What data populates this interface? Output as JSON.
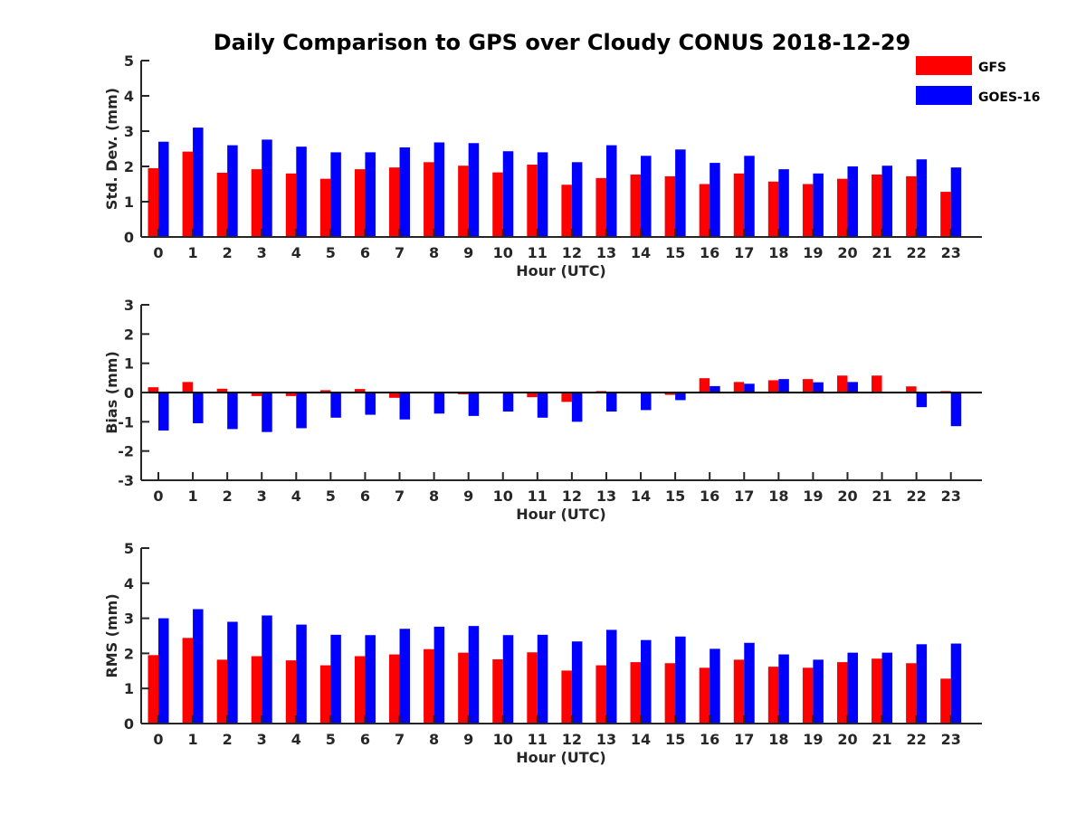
{
  "chart_data": {
    "title": "Daily Comparison to GPS over Cloudy CONUS 2018-12-29",
    "type": "bar",
    "legend": {
      "placement": "top-right",
      "entries": [
        {
          "name": "GFS",
          "color": "#ff0000"
        },
        {
          "name": "GOES-16",
          "color": "#0000ff"
        }
      ]
    },
    "colors": {
      "GFS": "#ff0000",
      "GOES-16": "#0000ff",
      "axis": "#262626"
    },
    "panels": [
      {
        "ylabel": "Std. Dev. (mm)",
        "xlabel": "Hour (UTC)",
        "ylim": [
          0,
          5
        ],
        "yticks": [
          "0",
          "1",
          "2",
          "3",
          "4",
          "5"
        ],
        "categories": [
          "0",
          "1",
          "2",
          "3",
          "4",
          "5",
          "6",
          "7",
          "8",
          "9",
          "10",
          "11",
          "12",
          "13",
          "14",
          "15",
          "16",
          "17",
          "18",
          "19",
          "20",
          "21",
          "22",
          "23"
        ],
        "series": [
          {
            "name": "GFS",
            "values": [
              1.95,
              2.42,
              1.82,
              1.92,
              1.8,
              1.65,
              1.92,
              1.97,
              2.12,
              2.02,
              1.83,
              2.05,
              1.48,
              1.67,
              1.77,
              1.72,
              1.5,
              1.8,
              1.57,
              1.5,
              1.65,
              1.77,
              1.72,
              1.28
            ]
          },
          {
            "name": "GOES-16",
            "values": [
              2.7,
              3.1,
              2.6,
              2.76,
              2.56,
              2.4,
              2.4,
              2.54,
              2.68,
              2.66,
              2.43,
              2.4,
              2.12,
              2.6,
              2.3,
              2.48,
              2.1,
              2.3,
              1.92,
              1.8,
              2.0,
              2.02,
              2.2,
              1.97
            ]
          }
        ]
      },
      {
        "ylabel": "Bias (mm)",
        "xlabel": "Hour (UTC)",
        "ylim": [
          -3,
          3
        ],
        "yticks": [
          "-3",
          "-2",
          "-1",
          "0",
          "1",
          "2",
          "3"
        ],
        "categories": [
          "0",
          "1",
          "2",
          "3",
          "4",
          "5",
          "6",
          "7",
          "8",
          "9",
          "10",
          "11",
          "12",
          "13",
          "14",
          "15",
          "16",
          "17",
          "18",
          "19",
          "20",
          "21",
          "22",
          "23"
        ],
        "series": [
          {
            "name": "GFS",
            "values": [
              0.18,
              0.36,
              0.13,
              -0.12,
              -0.12,
              0.08,
              0.12,
              -0.18,
              0.0,
              -0.06,
              0.0,
              -0.16,
              -0.32,
              0.05,
              0.0,
              -0.08,
              0.49,
              0.36,
              0.42,
              0.46,
              0.58,
              0.58,
              0.21,
              0.05
            ]
          },
          {
            "name": "GOES-16",
            "values": [
              -1.3,
              -1.05,
              -1.25,
              -1.35,
              -1.22,
              -0.86,
              -0.76,
              -0.92,
              -0.72,
              -0.8,
              -0.65,
              -0.86,
              -1.0,
              -0.65,
              -0.6,
              -0.26,
              0.22,
              0.3,
              0.46,
              0.35,
              0.36,
              0.0,
              -0.5,
              -1.15
            ]
          }
        ]
      },
      {
        "ylabel": "RMS (mm)",
        "xlabel": "Hour (UTC)",
        "ylim": [
          0,
          5
        ],
        "yticks": [
          "0",
          "1",
          "2",
          "3",
          "4",
          "5"
        ],
        "categories": [
          "0",
          "1",
          "2",
          "3",
          "4",
          "5",
          "6",
          "7",
          "8",
          "9",
          "10",
          "11",
          "12",
          "13",
          "14",
          "15",
          "16",
          "17",
          "18",
          "19",
          "20",
          "21",
          "22",
          "23"
        ],
        "series": [
          {
            "name": "GFS",
            "values": [
              1.95,
              2.44,
              1.82,
              1.92,
              1.8,
              1.66,
              1.92,
              1.97,
              2.12,
              2.02,
              1.83,
              2.03,
              1.51,
              1.66,
              1.75,
              1.72,
              1.59,
              1.82,
              1.62,
              1.59,
              1.75,
              1.85,
              1.72,
              1.28
            ]
          },
          {
            "name": "GOES-16",
            "values": [
              3.0,
              3.26,
              2.9,
              3.08,
              2.82,
              2.53,
              2.52,
              2.7,
              2.76,
              2.78,
              2.52,
              2.53,
              2.34,
              2.67,
              2.38,
              2.48,
              2.13,
              2.3,
              1.97,
              1.82,
              2.02,
              2.02,
              2.26,
              2.28
            ]
          }
        ]
      }
    ]
  }
}
